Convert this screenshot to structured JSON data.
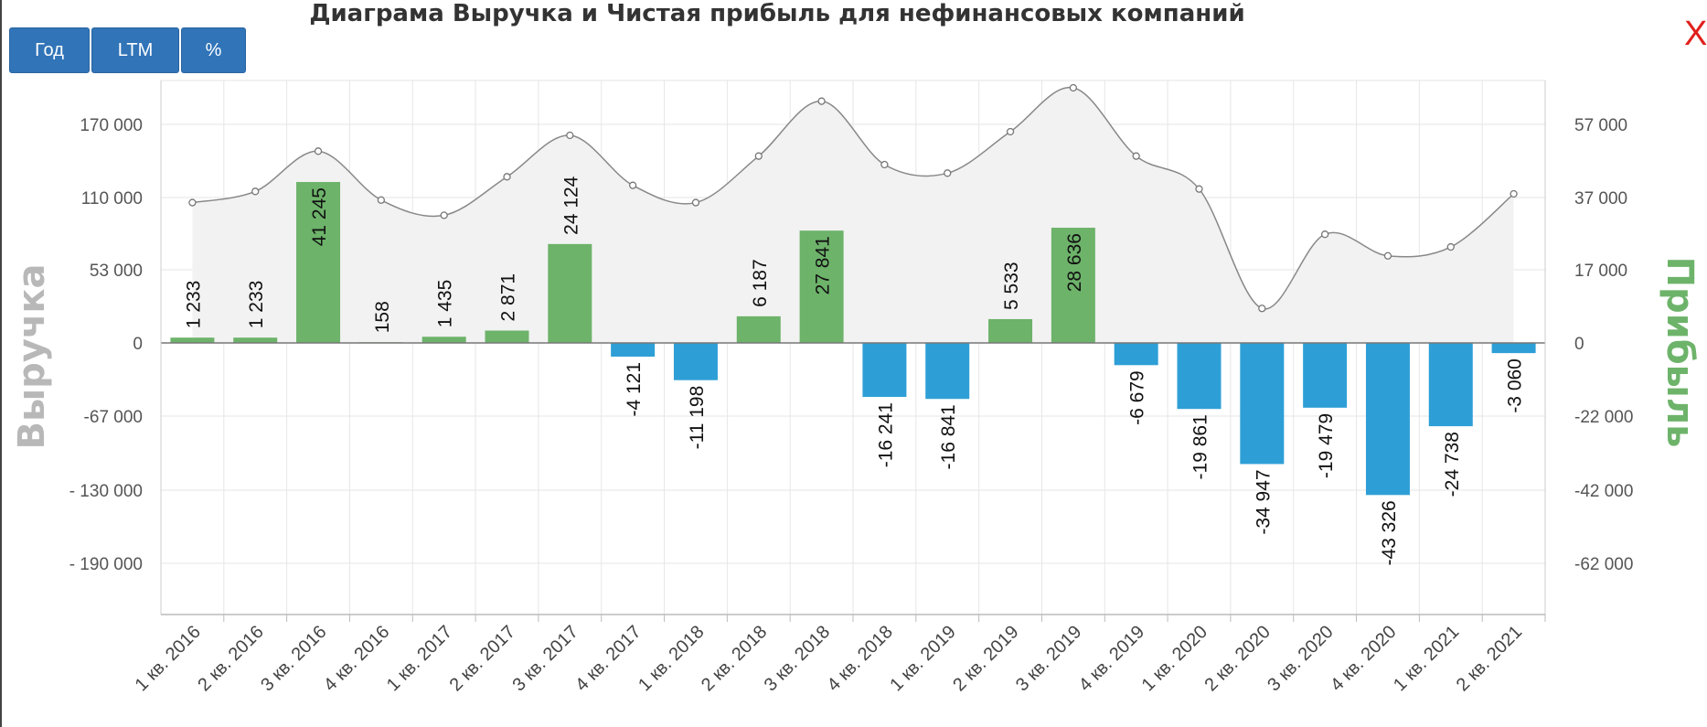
{
  "header": {
    "title": "Диаграма Выручка и Чистая прибыль для нефинансовых компаний",
    "buttons": [
      "Год",
      "LTM",
      "%"
    ],
    "close_label": "X"
  },
  "colors": {
    "positive_bar": "#6db36a",
    "negative_bar": "#2e9fd6",
    "revenue_line": "#888888",
    "revenue_area": "#f2f2f2",
    "left_axis_title": "#b8b8b8",
    "right_axis_title": "#6db36a"
  },
  "chart_data": {
    "type": "bar",
    "title": "Диаграма Выручка и Чистая прибыль для нефинансовых компаний",
    "categories": [
      "1 кв. 2016",
      "2 кв. 2016",
      "3 кв. 2016",
      "4 кв. 2016",
      "1 кв. 2017",
      "2 кв. 2017",
      "3 кв. 2017",
      "4 кв. 2017",
      "1 кв. 2018",
      "2 кв. 2018",
      "3 кв. 2018",
      "4 кв. 2018",
      "1 кв. 2019",
      "2 кв. 2019",
      "3 кв. 2019",
      "4 кв. 2019",
      "1 кв. 2020",
      "2 кв. 2020",
      "3 кв. 2020",
      "4 кв. 2020",
      "1 кв. 2021",
      "2 кв. 2021"
    ],
    "y_left": {
      "label": "Выручка",
      "ticks": [
        170000,
        110000,
        53000,
        0,
        -67000,
        -130000,
        -190000
      ],
      "tick_labels": [
        "170 000",
        "110 000",
        "53 000",
        "0",
        "-67 000",
        "- 130 000",
        "- 190 000"
      ]
    },
    "y_right": {
      "label": "Прибыль",
      "ticks": [
        57000,
        37000,
        17000,
        0,
        -22000,
        -42000,
        -62000
      ],
      "tick_labels": [
        "57 000",
        "37 000",
        "17 000",
        "0",
        "-22 000",
        "-42 000",
        "-62 000"
      ]
    },
    "series": [
      {
        "name": "Прибыль",
        "type": "bar",
        "axis": "right",
        "values": [
          1233,
          1233,
          41245,
          158,
          1435,
          2871,
          24124,
          -4121,
          -11198,
          6187,
          27841,
          -16241,
          -16841,
          5533,
          28636,
          -6679,
          -19861,
          -34947,
          -19479,
          -43326,
          -24738,
          -3060
        ],
        "labels": [
          "1 233",
          "1 233",
          "41 245",
          "158",
          "1 435",
          "2 871",
          "24 124",
          "-4 121",
          "-11 198",
          "6 187",
          "27 841",
          "-16 241",
          "-16 841",
          "5 533",
          "28 636",
          "-6 679",
          "-19 861",
          "-34 947",
          "-19 479",
          "-43 326",
          "-24 738",
          "-3 060"
        ]
      },
      {
        "name": "Выручка",
        "type": "area",
        "axis": "left",
        "values": [
          106000,
          115000,
          148000,
          108000,
          96000,
          127000,
          161000,
          120000,
          106000,
          144000,
          189000,
          137000,
          130000,
          164000,
          200000,
          144000,
          117000,
          25000,
          81000,
          64000,
          71000,
          113000
        ]
      }
    ],
    "grid": true
  }
}
